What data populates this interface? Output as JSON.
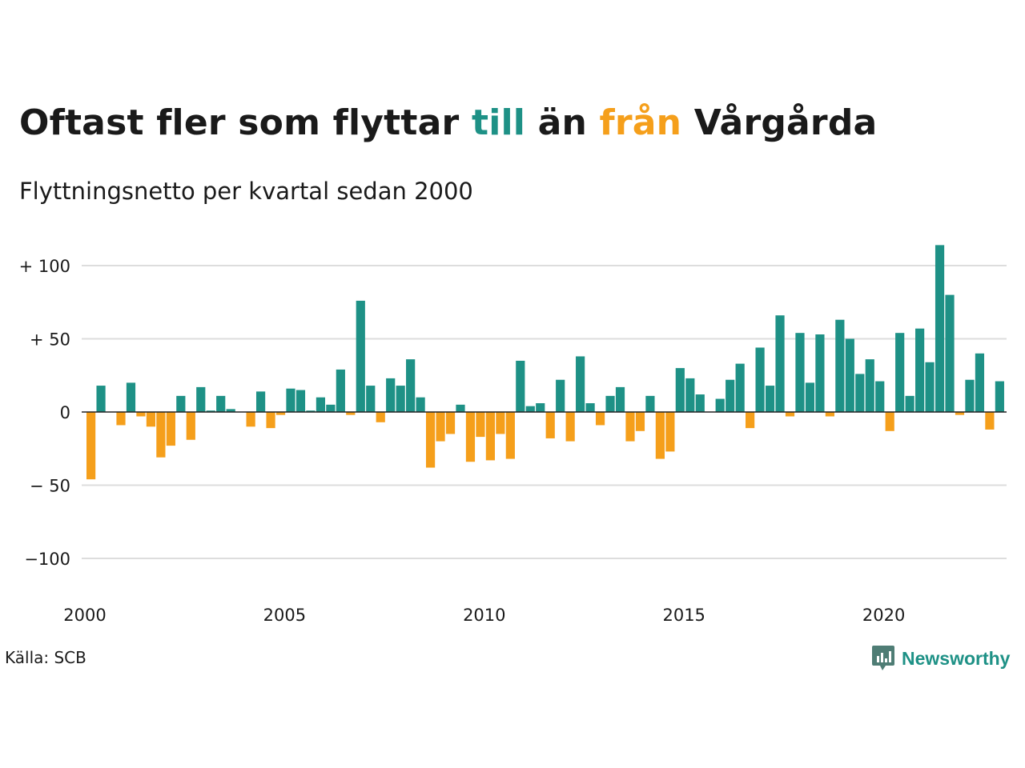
{
  "title": {
    "before": "Oftast fler som flyttar ",
    "till": "till",
    "middle": " än ",
    "fran": "från",
    "after": " Vårgårda"
  },
  "subtitle": "Flyttningsnetto per kvartal sedan 2000",
  "source": "Källa: SCB",
  "logo": {
    "text": "Newsworthy"
  },
  "colors": {
    "positive": "#1e9186",
    "negative": "#f59f1b",
    "grid": "#dddddd",
    "axis": "#222222"
  },
  "chart_data": {
    "type": "bar",
    "title": "Oftast fler som flyttar till än från Vårgårda",
    "subtitle": "Flyttningsnetto per kvartal sedan 2000",
    "x_start": 2000,
    "periods_per_year": 4,
    "ylim": [
      -120,
      120
    ],
    "y_ticks": [
      100,
      50,
      0,
      -50,
      -100
    ],
    "y_tick_labels": [
      "+ 100",
      "+  50",
      "0",
      "− 50",
      "−100"
    ],
    "x_ticks": [
      2000,
      2005,
      2010,
      2015,
      2020
    ],
    "grid": true,
    "values": [
      -46,
      18,
      0,
      -9,
      20,
      -3,
      -10,
      -31,
      -23,
      11,
      -19,
      17,
      1,
      11,
      2,
      0,
      -10,
      14,
      -11,
      -2,
      16,
      15,
      1,
      10,
      5,
      29,
      -2,
      76,
      18,
      -7,
      23,
      18,
      36,
      10,
      -38,
      -20,
      -15,
      5,
      -34,
      -17,
      -33,
      -15,
      -32,
      35,
      4,
      6,
      -18,
      22,
      -20,
      38,
      6,
      -9,
      11,
      17,
      -20,
      -13,
      11,
      -32,
      -27,
      30,
      23,
      12,
      0,
      9,
      22,
      33,
      -11,
      44,
      18,
      66,
      -3,
      54,
      20,
      53,
      -3,
      63,
      50,
      26,
      36,
      21,
      -13,
      54,
      11,
      57,
      34,
      114,
      80,
      -2,
      22,
      40,
      -12,
      21
    ]
  }
}
